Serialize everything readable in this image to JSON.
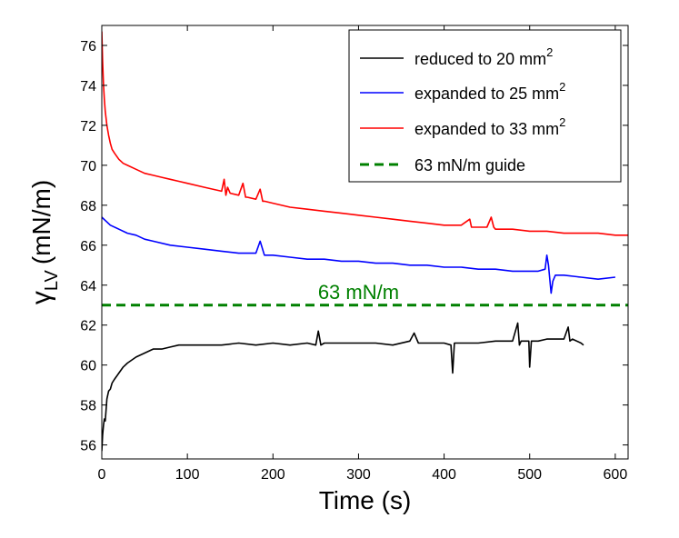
{
  "chart_data": {
    "type": "line",
    "title": "",
    "xlabel": "Time (s)",
    "ylabel": {
      "symbol": "γ",
      "subscript": "LV",
      "unit": "(mN/m)"
    },
    "xlim": [
      0,
      615
    ],
    "ylim": [
      55.3,
      77.0
    ],
    "xticks": [
      0,
      100,
      200,
      300,
      400,
      500,
      600
    ],
    "yticks": [
      56,
      58,
      60,
      62,
      64,
      66,
      68,
      70,
      72,
      74,
      76
    ],
    "legend_position": "top-right",
    "series": [
      {
        "name": "reduced to 20 mm",
        "superscript": "2",
        "color": "#000000",
        "style": "solid",
        "x": [
          0,
          1,
          2,
          3,
          4,
          6,
          8,
          10,
          12,
          15,
          20,
          25,
          30,
          40,
          50,
          60,
          70,
          80,
          90,
          100,
          120,
          140,
          160,
          180,
          200,
          220,
          240,
          250,
          253,
          256,
          260,
          280,
          300,
          320,
          340,
          360,
          365,
          370,
          380,
          400,
          408,
          410,
          412,
          420,
          440,
          460,
          480,
          486,
          488,
          490,
          495,
          499,
          500,
          502,
          510,
          520,
          540,
          545,
          547,
          550,
          560,
          563
        ],
        "y": [
          55.7,
          56.5,
          57.0,
          57.3,
          57.2,
          58.3,
          58.7,
          58.8,
          59.1,
          59.3,
          59.6,
          59.9,
          60.1,
          60.4,
          60.6,
          60.8,
          60.8,
          60.9,
          61.0,
          61.0,
          61.0,
          61.0,
          61.1,
          61.0,
          61.1,
          61.0,
          61.1,
          61.0,
          61.7,
          61.0,
          61.1,
          61.1,
          61.1,
          61.1,
          61.0,
          61.2,
          61.6,
          61.1,
          61.1,
          61.1,
          61.0,
          59.6,
          61.1,
          61.1,
          61.1,
          61.2,
          61.2,
          62.1,
          61.0,
          61.2,
          61.2,
          61.2,
          59.9,
          61.2,
          61.2,
          61.3,
          61.3,
          61.9,
          61.2,
          61.3,
          61.1,
          61.0
        ]
      },
      {
        "name": "expanded to 25 mm",
        "superscript": "2",
        "color": "#0000ff",
        "style": "solid",
        "x": [
          0,
          10,
          20,
          30,
          40,
          50,
          60,
          80,
          100,
          120,
          140,
          160,
          180,
          185,
          190,
          200,
          220,
          240,
          260,
          280,
          300,
          320,
          340,
          360,
          380,
          400,
          420,
          440,
          460,
          480,
          500,
          510,
          518,
          520,
          522,
          525,
          527,
          530,
          540,
          560,
          580,
          600
        ],
        "y": [
          67.4,
          67.0,
          66.8,
          66.6,
          66.5,
          66.3,
          66.2,
          66.0,
          65.9,
          65.8,
          65.7,
          65.6,
          65.6,
          66.2,
          65.5,
          65.5,
          65.4,
          65.3,
          65.3,
          65.2,
          65.2,
          65.1,
          65.1,
          65.0,
          65.0,
          64.9,
          64.9,
          64.8,
          64.8,
          64.7,
          64.7,
          64.7,
          64.8,
          65.5,
          65.0,
          63.6,
          64.2,
          64.5,
          64.5,
          64.4,
          64.3,
          64.4
        ]
      },
      {
        "name": "expanded to 33 mm",
        "superscript": "2",
        "color": "#ff0000",
        "style": "solid",
        "x": [
          0,
          1,
          2,
          3,
          4,
          6,
          8,
          10,
          12,
          15,
          20,
          25,
          30,
          40,
          50,
          60,
          70,
          80,
          90,
          100,
          120,
          140,
          143,
          145,
          147,
          150,
          160,
          165,
          168,
          170,
          180,
          185,
          188,
          190,
          200,
          220,
          240,
          260,
          280,
          300,
          320,
          340,
          360,
          380,
          400,
          420,
          430,
          432,
          435,
          450,
          455,
          458,
          460,
          480,
          500,
          520,
          540,
          560,
          580,
          600,
          615
        ],
        "y": [
          76.7,
          75.2,
          74.0,
          73.3,
          72.7,
          72.0,
          71.5,
          71.1,
          70.8,
          70.6,
          70.3,
          70.1,
          70.0,
          69.8,
          69.6,
          69.5,
          69.4,
          69.3,
          69.2,
          69.1,
          68.9,
          68.7,
          69.3,
          68.5,
          68.9,
          68.6,
          68.5,
          69.1,
          68.4,
          68.4,
          68.3,
          68.8,
          68.2,
          68.2,
          68.1,
          67.9,
          67.8,
          67.7,
          67.6,
          67.5,
          67.4,
          67.3,
          67.2,
          67.1,
          67.0,
          67.0,
          67.3,
          66.9,
          66.9,
          66.9,
          67.4,
          66.9,
          66.8,
          66.8,
          66.7,
          66.7,
          66.6,
          66.6,
          66.6,
          66.5,
          66.5
        ]
      },
      {
        "name": "63 mN/m guide",
        "superscript": "",
        "color": "#008000",
        "style": "dashed",
        "x": [
          0,
          615
        ],
        "y": [
          63.0,
          63.0
        ]
      }
    ],
    "annotations": [
      {
        "text": "63 mN/m",
        "x": 300,
        "y": 63.5,
        "color": "#008000"
      }
    ]
  }
}
